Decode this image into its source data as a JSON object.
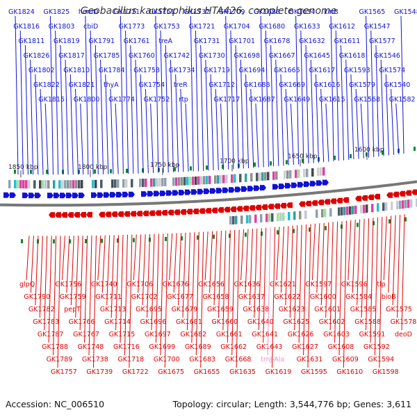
{
  "title": "Geobacillus kaustophilus HTA426, complete genome",
  "footer": {
    "accession": "Accession: NC_006510",
    "summary": "Topology: circular; Length: 3,544,776 bp; Genes: 3,611"
  },
  "colors": {
    "plus": "#1010d8",
    "minus": "#e00000",
    "rna": "#f090c8",
    "backbone": "#777777",
    "tick": "#0a8a2a"
  },
  "ticks": [
    "1850 kbp",
    "1800 kbp",
    "1750 kbp",
    "1700 kbp",
    "1650 kbp",
    "1600 kbp"
  ],
  "top_labels": [
    "GK1824",
    "GK1816",
    "GK1811",
    "GK1826",
    "GK1802",
    "GK1822",
    "GK1815",
    "GK1825",
    "GK1803",
    "GK1819",
    "GK1817",
    "GK1810",
    "GK1821",
    "GK1800",
    "hemD",
    "cbiD",
    "GK1791",
    "GK1785",
    "GK1784",
    "thyA",
    "GK1774",
    "GK1771",
    "GK1773",
    "GK1761",
    "GK1760",
    "GK1758",
    "GK1754",
    "GK1752",
    "GK1751",
    "GK1753",
    "treA",
    "GK1742",
    "GK1734",
    "treR",
    "rtp",
    "GK1732",
    "GK1721",
    "GK1731",
    "GK1730",
    "GK1719",
    "GK1712",
    "GK1717",
    "GK1709",
    "GK1704",
    "GK1701",
    "GK1698",
    "GK1694",
    "GK1688",
    "GK1687",
    "GK1686",
    "GK1680",
    "GK1678",
    "GK1667",
    "GK1665",
    "GK1669",
    "GK1649",
    "GK1634",
    "GK1633",
    "GK1632",
    "GK1645",
    "GK1617",
    "GK1616",
    "GK1615",
    "kinB",
    "GK1612",
    "GK1611",
    "GK1618",
    "GK1593",
    "GK1579",
    "GK1568",
    "GK1565",
    "GK1547",
    "GK1577",
    "GK1546",
    "GK1574",
    "GK1540",
    "GK1582",
    "GK1548"
  ],
  "bottom_labels": [
    "glpQ",
    "GK1790",
    "GK1782",
    "GK1783",
    "GK1787",
    "GK1788",
    "GK1789",
    "GK1757",
    "GK1756",
    "GK1759",
    "pepT",
    "GK1766",
    "GK1767",
    "GK1748",
    "GK1738",
    "GK1739",
    "GK1740",
    "GK1711",
    "GK1713",
    "GK1714",
    "GK1715",
    "GK1716",
    "GK1718",
    "GK1722",
    "GK1706",
    "GK1702",
    "GK1695",
    "GK1696",
    "GK1697",
    "GK1699",
    "GK1700",
    "GK1675",
    "GK1676",
    "GK1677",
    "GK1679",
    "GK1681",
    "GK1682",
    "GK1689",
    "GK1683",
    "GK1655",
    "GK1656",
    "GK1658",
    "GK1659",
    "GK1660",
    "GK1661",
    "GK1662",
    "GK1668",
    "GK1635",
    "GK1636",
    "GK1637",
    "GK1638",
    "GK1640",
    "GK1641",
    "GK1643",
    "trnJ-Ala",
    "GK1619",
    "GK1621",
    "GK1622",
    "GK1623",
    "GK1625",
    "GK1626",
    "GK1627",
    "GK1631",
    "GK1595",
    "GK1597",
    "GK1600",
    "GK1601",
    "GK1602",
    "GK1603",
    "GK1608",
    "GK1609",
    "GK1610",
    "GK1596",
    "GK1584",
    "GK1585",
    "GK1588",
    "GK1591",
    "GK1592",
    "GK1594",
    "GK1598",
    "tlp",
    "bioB",
    "GK1575",
    "GK1578",
    "deoD"
  ]
}
